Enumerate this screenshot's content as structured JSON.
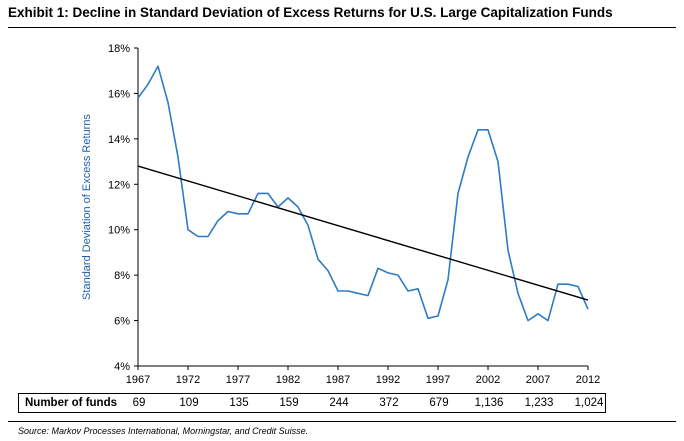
{
  "title": "Exhibit 1: Decline in Standard Deviation of Excess Returns for U.S. Large Capitalization Funds",
  "source": "Source: Markov Processes International, Morningstar, and Credit Suisse.",
  "funds": {
    "label": "Number of funds",
    "values": [
      "69",
      "109",
      "135",
      "159",
      "244",
      "372",
      "679",
      "1,136",
      "1,233",
      "1,024"
    ]
  },
  "chart_data": {
    "type": "line",
    "title": "Exhibit 1: Decline in Standard Deviation of Excess Returns for U.S. Large Capitalization Funds",
    "xlabel": "",
    "ylabel": "Standard Deviation of Excess Returns",
    "xlim": [
      1967,
      2012
    ],
    "ylim": [
      4,
      18
    ],
    "x_ticks": [
      "1967",
      "1972",
      "1977",
      "1982",
      "1987",
      "1992",
      "1997",
      "2002",
      "2007",
      "2012"
    ],
    "y_ticks": [
      "4%",
      "6%",
      "8%",
      "10%",
      "12%",
      "14%",
      "16%",
      "18%"
    ],
    "grid": false,
    "series": [
      {
        "color": "#2e7bc4",
        "x": [
          1967,
          1968,
          1969,
          1970,
          1971,
          1972,
          1973,
          1974,
          1975,
          1976,
          1977,
          1978,
          1979,
          1980,
          1981,
          1982,
          1983,
          1984,
          1985,
          1986,
          1987,
          1988,
          1989,
          1990,
          1991,
          1992,
          1993,
          1994,
          1995,
          1996,
          1997,
          1998,
          1999,
          2000,
          2001,
          2002,
          2003,
          2004,
          2005,
          2006,
          2007,
          2008,
          2009,
          2010,
          2011,
          2012
        ],
        "y": [
          15.8,
          16.4,
          17.2,
          15.6,
          13.2,
          10.0,
          9.7,
          9.7,
          10.4,
          10.8,
          10.7,
          10.7,
          11.6,
          11.6,
          11.0,
          11.4,
          11.0,
          10.2,
          8.7,
          8.2,
          7.3,
          7.3,
          7.2,
          7.1,
          8.3,
          8.1,
          8.0,
          7.3,
          7.4,
          6.1,
          6.2,
          7.8,
          11.6,
          13.2,
          14.4,
          14.4,
          13.0,
          9.1,
          7.2,
          6.0,
          6.3,
          6.0,
          7.6,
          7.6,
          7.5,
          6.5
        ]
      },
      {
        "color": "#000000",
        "x": [
          1967,
          2012
        ],
        "y": [
          12.8,
          6.9
        ]
      }
    ]
  }
}
